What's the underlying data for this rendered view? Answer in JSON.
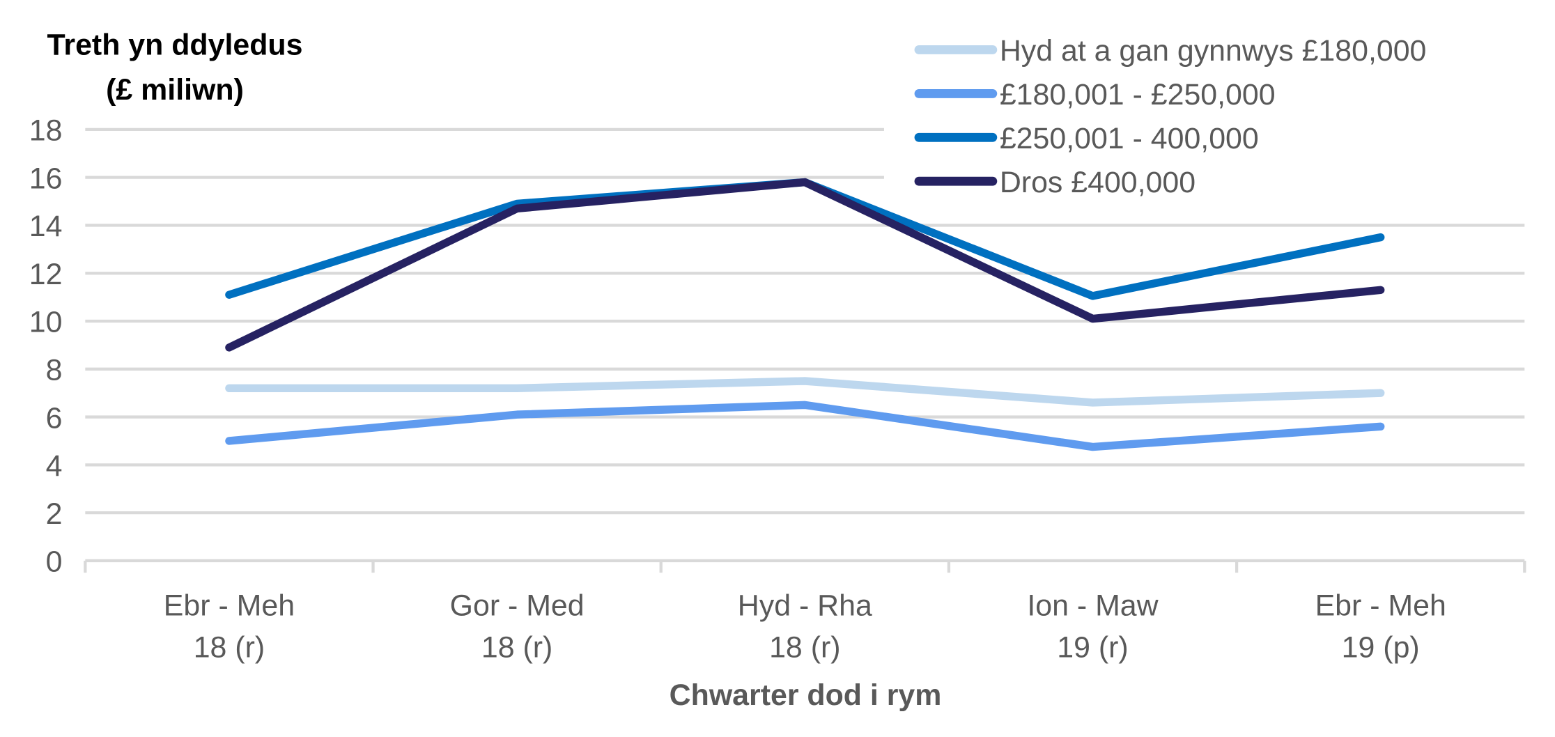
{
  "chart_data": {
    "type": "line",
    "ylabel_lines": [
      "Treth yn ddyledus",
      "(£ miliwn)"
    ],
    "xlabel": "Chwarter dod i rym",
    "ylim": [
      0,
      18
    ],
    "yticks": [
      0,
      2,
      4,
      6,
      8,
      10,
      12,
      14,
      16,
      18
    ],
    "categories": [
      [
        "Ebr - Meh",
        "18 (r)"
      ],
      [
        "Gor - Med",
        "18 (r)"
      ],
      [
        "Hyd - Rha",
        "18 (r)"
      ],
      [
        "Ion - Maw",
        "19 (r)"
      ],
      [
        "Ebr - Meh",
        "19 (p)"
      ]
    ],
    "grid": true,
    "legend_position": "top-right",
    "series": [
      {
        "name": "Hyd at a gan gynnwys £180,000",
        "color": "#BDD7EE",
        "values": [
          7.2,
          7.2,
          7.5,
          6.6,
          7.0
        ]
      },
      {
        "name": "£180,001 - £250,000",
        "color": "#5F9BEF",
        "values": [
          5.0,
          6.1,
          6.5,
          4.75,
          5.6
        ]
      },
      {
        "name": "£250,001 - 400,000",
        "color": "#0070C0",
        "values": [
          11.1,
          14.9,
          15.8,
          11.05,
          13.5
        ]
      },
      {
        "name": "Dros £400,000",
        "color": "#262262",
        "values": [
          8.9,
          14.7,
          15.8,
          10.1,
          11.3
        ]
      }
    ]
  }
}
